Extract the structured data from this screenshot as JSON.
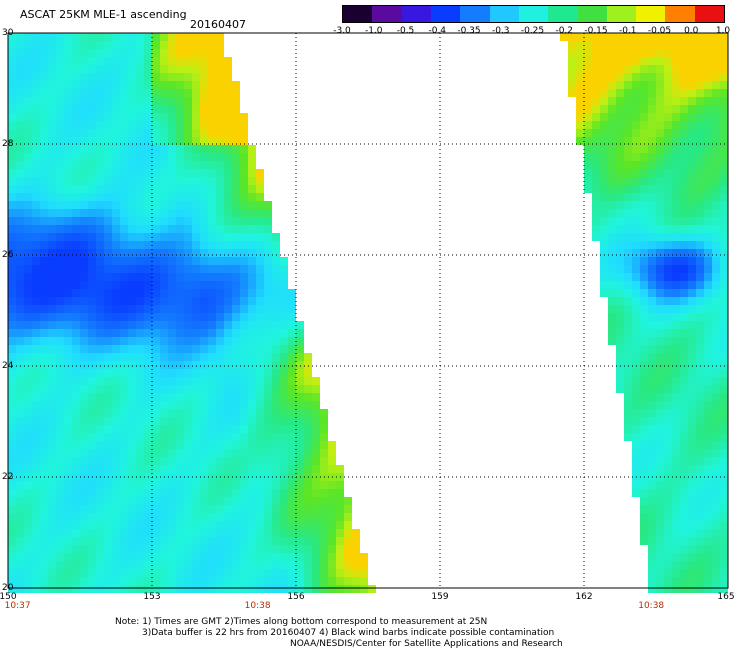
{
  "title": "ASCAT 25KM MLE-1 ascending",
  "date": "20160407",
  "colorbar": {
    "ticks": [
      "-3.0",
      "-1.0",
      "-0.5",
      "-0.4",
      "-0.35",
      "-0.3",
      "-0.25",
      "-0.2",
      "-0.15",
      "-0.1",
      "-0.05",
      "0.0",
      "1.0"
    ],
    "colors": [
      "#1a0030",
      "#5b0aa0",
      "#3818e0",
      "#0a3cff",
      "#147cff",
      "#20c8ff",
      "#20f0e0",
      "#20e890",
      "#40e040",
      "#a0f020",
      "#f0f000",
      "#ff8000",
      "#e81010"
    ]
  },
  "axes": {
    "lat_ticks": [
      "30",
      "28",
      "26",
      "24",
      "22",
      "20"
    ],
    "lon_ticks": [
      "150",
      "153",
      "156",
      "159",
      "162",
      "165"
    ],
    "lat_range": [
      20,
      30
    ],
    "lon_range": [
      150,
      165
    ]
  },
  "time_labels": [
    {
      "text": "10:37",
      "lon": 150.2
    },
    {
      "text": "10:38",
      "lon": 155.2
    },
    {
      "text": "10:38",
      "lon": 163.4
    }
  ],
  "notes": {
    "line1": "Note: 1) Times are GMT 2)Times along bottom correspond to measurement at 25N",
    "line2": "3)Data buffer is 22 hrs from 20160407 4) Black wind barbs indicate possible contamination",
    "line3": "NOAA/NESDIS/Center for Satellite Applications and Research"
  }
}
